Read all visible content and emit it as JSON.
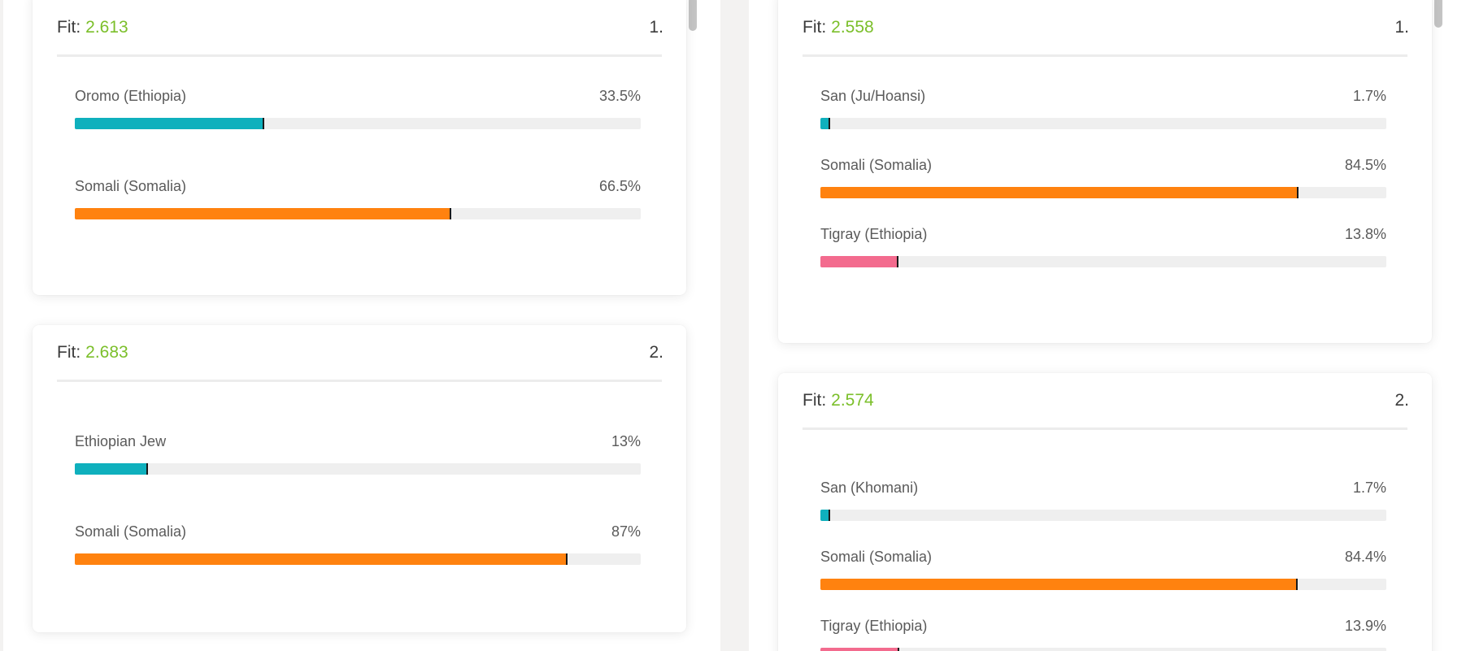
{
  "columns": [
    {
      "cards": [
        {
          "fit_label": "Fit:",
          "fit_value": "2.613",
          "rank": "1.",
          "rows": [
            {
              "name": "Oromo (Ethiopia)",
              "percent_label": "33.5%",
              "percent": 33.5,
              "color": "#0fb0bd"
            },
            {
              "name": "Somali (Somalia)",
              "percent_label": "66.5%",
              "percent": 66.5,
              "color": "#ff820f"
            }
          ]
        },
        {
          "fit_label": "Fit:",
          "fit_value": "2.683",
          "rank": "2.",
          "rows": [
            {
              "name": "Ethiopian Jew",
              "percent_label": "13%",
              "percent": 13,
              "color": "#0fb0bd"
            },
            {
              "name": "Somali (Somalia)",
              "percent_label": "87%",
              "percent": 87,
              "color": "#ff820f"
            }
          ]
        }
      ]
    },
    {
      "cards": [
        {
          "fit_label": "Fit:",
          "fit_value": "2.558",
          "rank": "1.",
          "rows": [
            {
              "name": "San (Ju/Hoansi)",
              "percent_label": "1.7%",
              "percent": 1.7,
              "color": "#0fb0bd"
            },
            {
              "name": "Somali (Somalia)",
              "percent_label": "84.5%",
              "percent": 84.5,
              "color": "#ff820f"
            },
            {
              "name": "Tigray (Ethiopia)",
              "percent_label": "13.8%",
              "percent": 13.8,
              "color": "#f36b8e"
            }
          ]
        },
        {
          "fit_label": "Fit:",
          "fit_value": "2.574",
          "rank": "2.",
          "rows": [
            {
              "name": "San (Khomani)",
              "percent_label": "1.7%",
              "percent": 1.7,
              "color": "#0fb0bd"
            },
            {
              "name": "Somali (Somalia)",
              "percent_label": "84.4%",
              "percent": 84.4,
              "color": "#ff820f"
            },
            {
              "name": "Tigray (Ethiopia)",
              "percent_label": "13.9%",
              "percent": 13.9,
              "color": "#f36b8e"
            }
          ]
        }
      ]
    }
  ]
}
